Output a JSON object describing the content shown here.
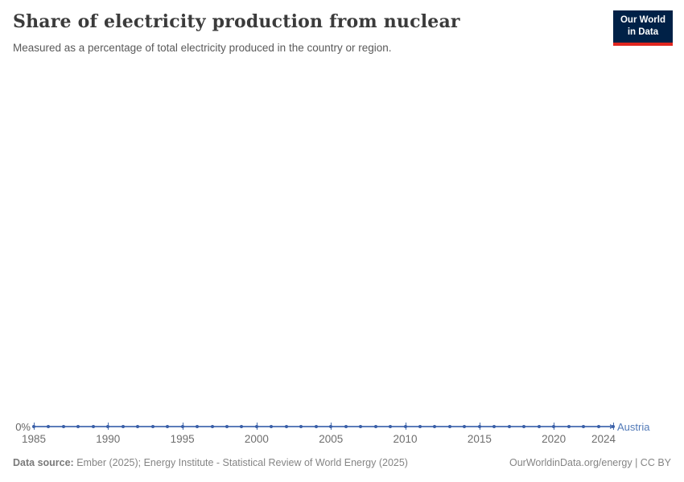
{
  "header": {
    "title": "Share of electricity production from nuclear",
    "subtitle": "Measured as a percentage of total electricity produced in the country or region.",
    "logo": {
      "line1": "Our World",
      "line2": "in Data"
    }
  },
  "chart_data": {
    "type": "line",
    "title": "Share of electricity production from nuclear",
    "xlabel": "",
    "ylabel": "",
    "y_tick_labels": [
      "0%"
    ],
    "ylim": [
      0,
      0
    ],
    "xlim": [
      1985,
      2024
    ],
    "x_ticks": [
      1985,
      1990,
      1995,
      2000,
      2005,
      2010,
      2015,
      2020,
      2024
    ],
    "grid": false,
    "legend_position": "end-of-line",
    "series": [
      {
        "name": "Austria",
        "color": "#5b7cb9",
        "x": [
          1985,
          1986,
          1987,
          1988,
          1989,
          1990,
          1991,
          1992,
          1993,
          1994,
          1995,
          1996,
          1997,
          1998,
          1999,
          2000,
          2001,
          2002,
          2003,
          2004,
          2005,
          2006,
          2007,
          2008,
          2009,
          2010,
          2011,
          2012,
          2013,
          2014,
          2015,
          2016,
          2017,
          2018,
          2019,
          2020,
          2021,
          2022,
          2023,
          2024
        ],
        "values": [
          0,
          0,
          0,
          0,
          0,
          0,
          0,
          0,
          0,
          0,
          0,
          0,
          0,
          0,
          0,
          0,
          0,
          0,
          0,
          0,
          0,
          0,
          0,
          0,
          0,
          0,
          0,
          0,
          0,
          0,
          0,
          0,
          0,
          0,
          0,
          0,
          0,
          0,
          0,
          0
        ]
      }
    ],
    "zero_label": "0%"
  },
  "footer": {
    "source_label": "Data source:",
    "source_text": "Ember (2025); Energy Institute - Statistical Review of World Energy (2025)",
    "right_text": "OurWorldinData.org/energy | CC BY"
  }
}
